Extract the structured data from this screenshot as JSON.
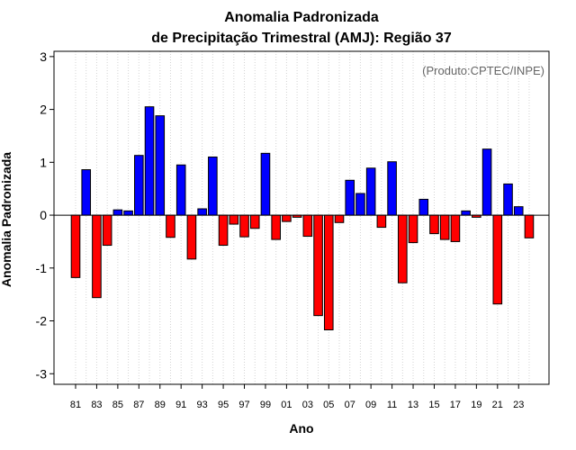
{
  "chart_data": {
    "type": "bar",
    "title": "Anomalia Padronizada",
    "subtitle": "de Precipitação Trimestral (AMJ): Região 37",
    "xlabel": "Ano",
    "ylabel": "Anomalia Padronizada",
    "annotation": "(Produto:CPTEC/INPE)",
    "ylim": [
      -3.2,
      3.1
    ],
    "yticks": [
      3,
      2,
      1,
      0,
      -1,
      -2,
      -3
    ],
    "ytick_labels": [
      "3",
      "2",
      "1",
      "0",
      "-1",
      "-2",
      "-3"
    ],
    "x_tick_labels": [
      "81",
      "83",
      "85",
      "87",
      "89",
      "91",
      "93",
      "95",
      "97",
      "99",
      "01",
      "03",
      "05",
      "07",
      "09",
      "11",
      "13",
      "15",
      "17",
      "19",
      "21",
      "23"
    ],
    "categories": [
      "1981",
      "1982",
      "1983",
      "1984",
      "1985",
      "1986",
      "1987",
      "1988",
      "1989",
      "1990",
      "1991",
      "1992",
      "1993",
      "1994",
      "1995",
      "1996",
      "1997",
      "1998",
      "1999",
      "2000",
      "2001",
      "2002",
      "2003",
      "2004",
      "2005",
      "2006",
      "2007",
      "2008",
      "2009",
      "2010",
      "2011",
      "2012",
      "2013",
      "2014",
      "2015",
      "2016",
      "2017",
      "2018",
      "2019",
      "2020",
      "2021",
      "2022",
      "2023",
      "2024"
    ],
    "values": [
      -1.18,
      0.86,
      -1.56,
      -0.57,
      0.1,
      0.08,
      1.13,
      2.05,
      1.88,
      -0.42,
      0.95,
      -0.83,
      0.12,
      1.1,
      -0.57,
      -0.17,
      -0.41,
      -0.25,
      1.17,
      -0.46,
      -0.12,
      -0.04,
      -0.4,
      -1.9,
      -2.17,
      -0.14,
      0.66,
      0.41,
      0.89,
      -0.23,
      1.01,
      -1.28,
      -0.52,
      0.3,
      -0.35,
      -0.46,
      -0.5,
      0.08,
      -0.04,
      1.25,
      -1.68,
      0.59,
      0.16,
      -0.43
    ],
    "positive_color": "#0000ff",
    "negative_color": "#ff0000",
    "grid": true
  }
}
